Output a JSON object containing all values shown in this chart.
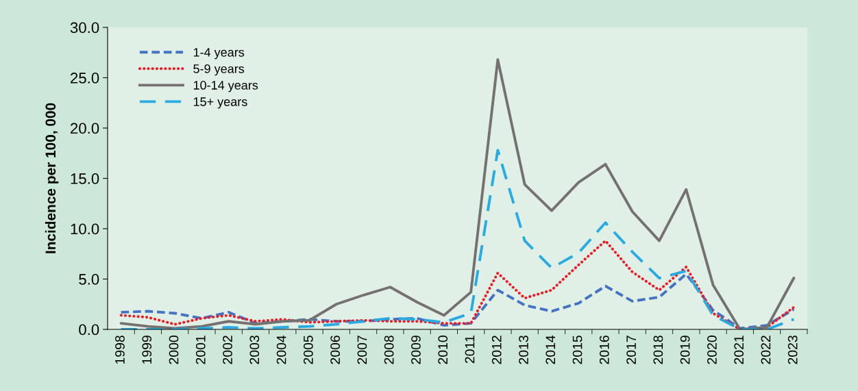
{
  "chart_data": {
    "type": "line",
    "ylabel": "Incidence per 100, 000",
    "categories": [
      "1998",
      "1999",
      "2000",
      "2001",
      "2002",
      "2003",
      "2004",
      "2005",
      "2006",
      "2007",
      "2008",
      "2009",
      "2010",
      "2011",
      "2012",
      "2013",
      "2014",
      "2015",
      "2016",
      "2017",
      "2018",
      "2019",
      "2020",
      "2021",
      "2022",
      "2023"
    ],
    "series": [
      {
        "name": "1-4 years",
        "color": "#4472c4",
        "line_style": "dashed",
        "values": [
          1.7,
          1.8,
          1.6,
          1.1,
          1.7,
          0.6,
          0.8,
          1.0,
          0.8,
          0.8,
          1.0,
          1.1,
          0.4,
          0.6,
          3.9,
          2.4,
          1.8,
          2.6,
          4.3,
          2.8,
          3.2,
          5.5,
          1.9,
          0.1,
          0.4,
          2.0
        ]
      },
      {
        "name": "5-9 years",
        "color": "#ed1c24",
        "line_style": "dotted",
        "values": [
          1.4,
          1.2,
          0.5,
          1.1,
          1.4,
          0.8,
          1.0,
          0.7,
          0.8,
          0.9,
          0.8,
          0.8,
          0.6,
          0.6,
          5.6,
          3.1,
          3.9,
          6.4,
          8.8,
          5.7,
          3.9,
          6.2,
          1.6,
          0.0,
          0.2,
          2.2
        ]
      },
      {
        "name": "10-14 years",
        "color": "#767171",
        "line_style": "solid",
        "values": [
          0.6,
          0.3,
          0.1,
          0.3,
          0.8,
          0.5,
          0.8,
          0.9,
          2.5,
          3.4,
          4.2,
          2.7,
          1.4,
          3.7,
          26.8,
          14.4,
          11.8,
          14.6,
          16.4,
          11.7,
          8.8,
          13.9,
          4.4,
          0.0,
          0.2,
          5.1
        ]
      },
      {
        "name": "15+ years",
        "color": "#29abe2",
        "line_style": "longdash",
        "values": [
          0.0,
          0.0,
          0.0,
          0.1,
          0.2,
          0.1,
          0.2,
          0.3,
          0.5,
          0.8,
          1.1,
          1.0,
          0.7,
          1.6,
          17.8,
          8.8,
          6.1,
          7.6,
          10.6,
          7.7,
          5.1,
          5.8,
          1.4,
          0.0,
          0.0,
          1.0
        ]
      }
    ],
    "ylim": [
      0,
      30
    ],
    "yticks": [
      {
        "value": 0,
        "label": "0.0"
      },
      {
        "value": 5,
        "label": "5.0"
      },
      {
        "value": 10,
        "label": "10.0"
      },
      {
        "value": 15,
        "label": "15.0"
      },
      {
        "value": 20,
        "label": "20.0"
      },
      {
        "value": 25,
        "label": "25.0"
      },
      {
        "value": 30,
        "label": "30.0"
      }
    ],
    "grid": false,
    "legend": "top left"
  }
}
